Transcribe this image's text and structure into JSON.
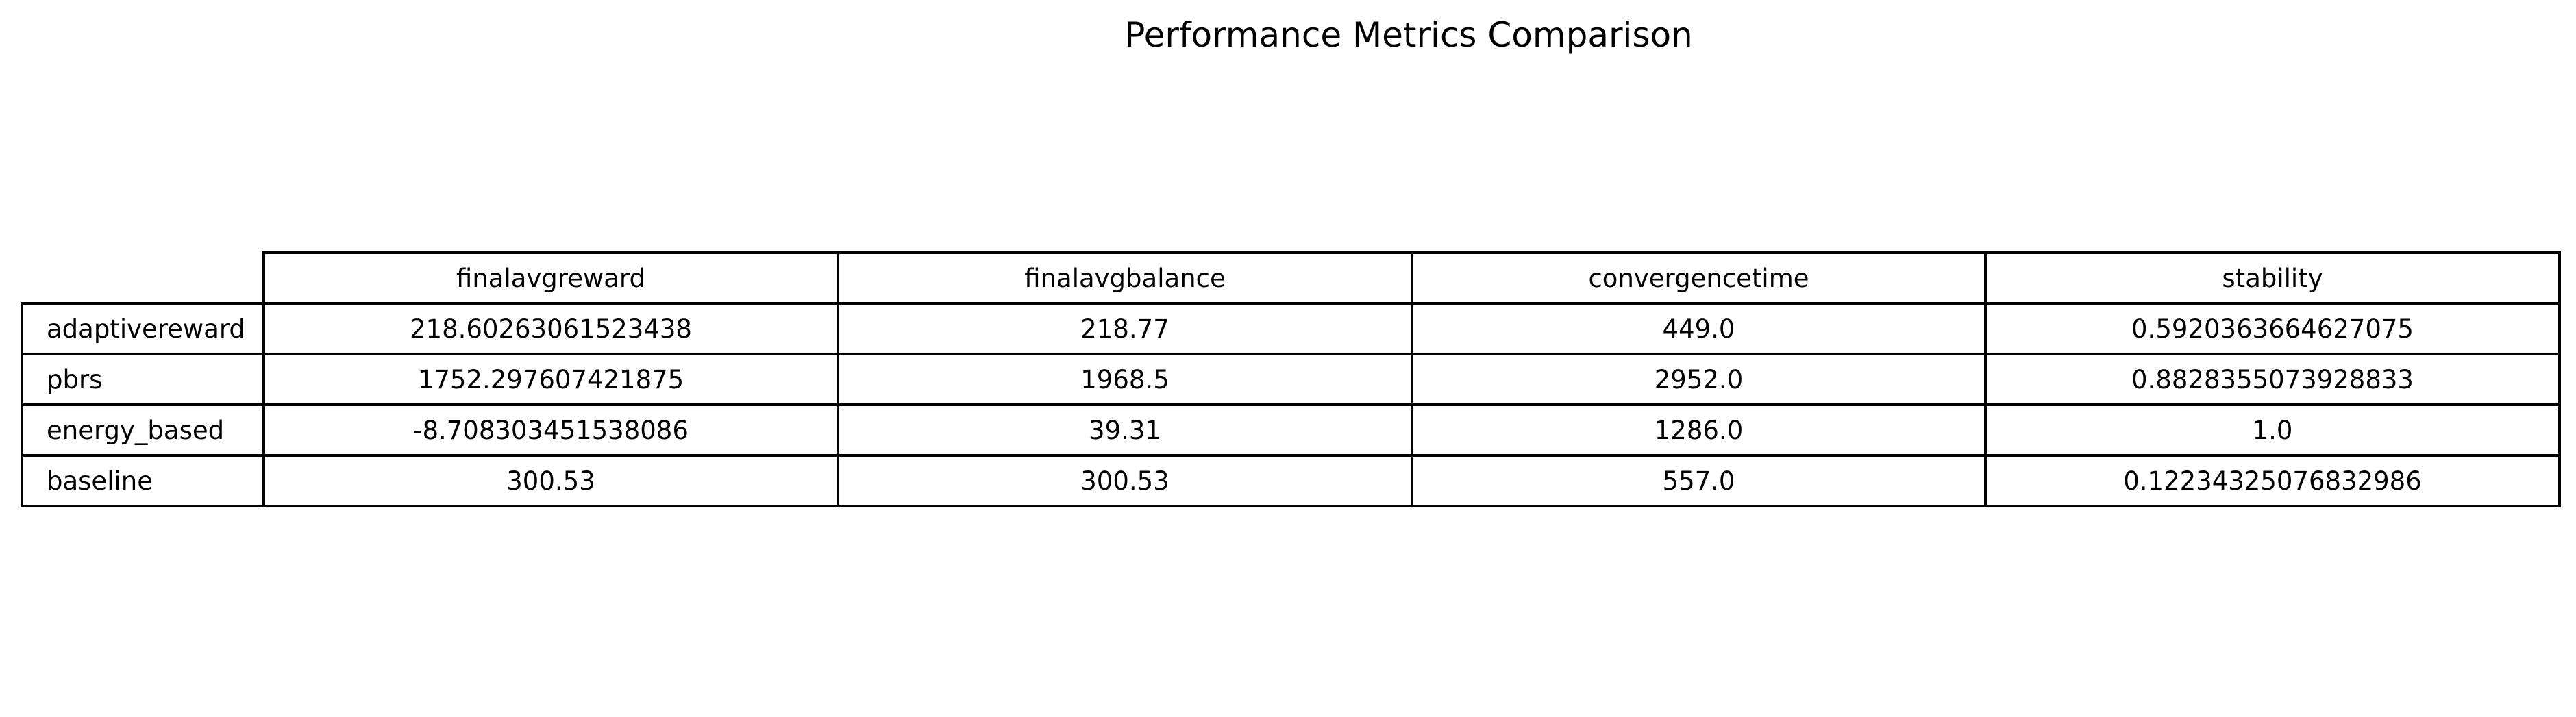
{
  "chart_data": {
    "type": "table",
    "title": "Performance Metrics Comparison",
    "columns": [
      "finalavgreward",
      "finalavgbalance",
      "convergencetime",
      "stability"
    ],
    "rows": [
      {
        "label": "adaptivereward",
        "values": [
          "218.60263061523438",
          "218.77",
          "449.0",
          "0.5920363664627075"
        ]
      },
      {
        "label": "pbrs",
        "values": [
          "1752.297607421875",
          "1968.5",
          "2952.0",
          "0.8828355073928833"
        ]
      },
      {
        "label": "energy_based",
        "values": [
          "-8.708303451538086",
          "39.31",
          "1286.0",
          "1.0"
        ]
      },
      {
        "label": "baseline",
        "values": [
          "300.53",
          "300.53",
          "557.0",
          "0.12234325076832986"
        ]
      }
    ]
  }
}
